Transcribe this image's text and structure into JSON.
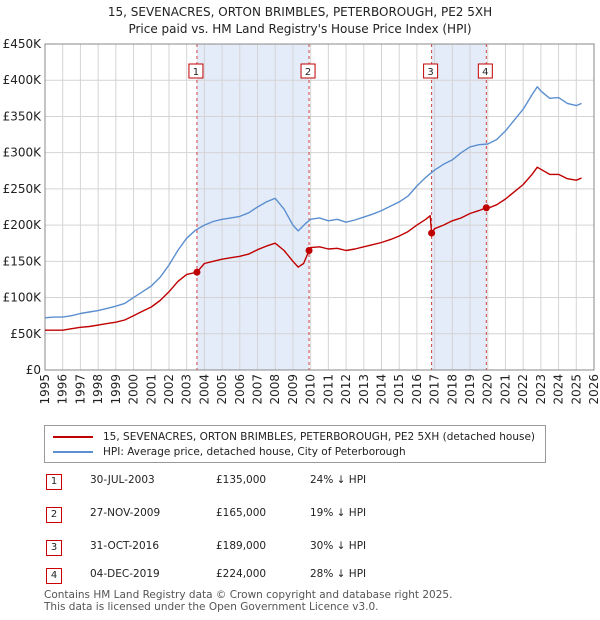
{
  "title_line1": "15, SEVENACRES, ORTON BRIMBLES, PETERBOROUGH, PE2 5XH",
  "title_line2": "Price paid vs. HM Land Registry's House Price Index (HPI)",
  "chart_data": {
    "type": "line",
    "title": "15, SEVENACRES, ORTON BRIMBLES, PETERBOROUGH, PE2 5XH — Price paid vs. HM Land Registry's House Price Index (HPI)",
    "xlabel": "",
    "ylabel": "",
    "xlim": [
      1995,
      2026
    ],
    "ylim": [
      0,
      450000
    ],
    "x_ticks": [
      1995,
      1996,
      1997,
      1998,
      1999,
      2000,
      2001,
      2002,
      2003,
      2004,
      2005,
      2006,
      2007,
      2008,
      2009,
      2010,
      2011,
      2012,
      2013,
      2014,
      2015,
      2016,
      2017,
      2018,
      2019,
      2020,
      2021,
      2022,
      2023,
      2024,
      2025,
      2026
    ],
    "y_ticks": [
      {
        "value": 0,
        "label": "£0"
      },
      {
        "value": 50000,
        "label": "£50K"
      },
      {
        "value": 100000,
        "label": "£100K"
      },
      {
        "value": 150000,
        "label": "£150K"
      },
      {
        "value": 200000,
        "label": "£200K"
      },
      {
        "value": 250000,
        "label": "£250K"
      },
      {
        "value": 300000,
        "label": "£300K"
      },
      {
        "value": 350000,
        "label": "£350K"
      },
      {
        "value": 400000,
        "label": "£400K"
      },
      {
        "value": 450000,
        "label": "£450K"
      }
    ],
    "shaded_periods": [
      [
        2003.58,
        2009.91
      ],
      [
        2016.83,
        2019.92
      ]
    ],
    "series": [
      {
        "name": "HPI: Average price, detached house, City of Peterborough",
        "color": "#5b8fd0",
        "x": [
          1995,
          1995.5,
          1996,
          1996.5,
          1997,
          1997.5,
          1998,
          1998.5,
          1999,
          1999.5,
          2000,
          2000.5,
          2001,
          2001.5,
          2002,
          2002.5,
          2003,
          2003.5,
          2004,
          2004.5,
          2005,
          2005.5,
          2006,
          2006.5,
          2007,
          2007.5,
          2008,
          2008.5,
          2009,
          2009.3,
          2009.7,
          2010,
          2010.5,
          2011,
          2011.5,
          2012,
          2012.5,
          2013,
          2013.5,
          2014,
          2014.5,
          2015,
          2015.5,
          2016,
          2016.5,
          2017,
          2017.5,
          2018,
          2018.5,
          2019,
          2019.5,
          2020,
          2020.5,
          2021,
          2021.5,
          2022,
          2022.5,
          2022.8,
          2023,
          2023.5,
          2024,
          2024.5,
          2025,
          2025.3
        ],
        "values": [
          72000,
          73000,
          73000,
          75000,
          78000,
          80000,
          82000,
          85000,
          88000,
          92000,
          100000,
          108000,
          116000,
          128000,
          145000,
          165000,
          182000,
          193000,
          200000,
          205000,
          208000,
          210000,
          212000,
          217000,
          225000,
          232000,
          237000,
          222000,
          200000,
          192000,
          202000,
          208000,
          210000,
          206000,
          208000,
          204000,
          207000,
          211000,
          215000,
          220000,
          226000,
          232000,
          240000,
          254000,
          266000,
          276000,
          284000,
          290000,
          300000,
          308000,
          311000,
          312000,
          318000,
          330000,
          345000,
          360000,
          380000,
          391000,
          385000,
          375000,
          376000,
          368000,
          365000,
          368000
        ]
      },
      {
        "name": "15, SEVENACRES, ORTON BRIMBLES, PETERBOROUGH, PE2 5XH (detached house)",
        "color": "#c00000",
        "x": [
          1995,
          1995.5,
          1996,
          1996.5,
          1997,
          1997.5,
          1998,
          1998.5,
          1999,
          1999.5,
          2000,
          2000.5,
          2001,
          2001.5,
          2002,
          2002.5,
          2003,
          2003.58,
          2004,
          2004.5,
          2005,
          2005.5,
          2006,
          2006.5,
          2007,
          2007.5,
          2008,
          2008.5,
          2009,
          2009.3,
          2009.6,
          2009.91,
          2010,
          2010.5,
          2011,
          2011.5,
          2012,
          2012.5,
          2013,
          2013.5,
          2014,
          2014.5,
          2015,
          2015.5,
          2016,
          2016.5,
          2016.75,
          2016.83,
          2017,
          2017.5,
          2018,
          2018.5,
          2019,
          2019.5,
          2019.92,
          2020,
          2020.5,
          2021,
          2021.5,
          2022,
          2022.5,
          2022.8,
          2023,
          2023.5,
          2024,
          2024.5,
          2025,
          2025.3
        ],
        "values": [
          55000,
          55000,
          55000,
          57000,
          59000,
          60000,
          62000,
          64000,
          66000,
          69000,
          75000,
          81000,
          87000,
          96000,
          108000,
          122000,
          132000,
          135000,
          147000,
          150000,
          153000,
          155000,
          157000,
          160000,
          166000,
          171000,
          175000,
          165000,
          150000,
          142000,
          147000,
          165000,
          169000,
          170000,
          167000,
          168000,
          165000,
          167000,
          170000,
          173000,
          176000,
          180000,
          185000,
          191000,
          200000,
          208000,
          213000,
          189000,
          195000,
          200000,
          206000,
          210000,
          216000,
          220000,
          224000,
          223000,
          228000,
          236000,
          246000,
          256000,
          270000,
          280000,
          277000,
          270000,
          270000,
          264000,
          262000,
          265000
        ]
      }
    ],
    "sales_markers": [
      {
        "label": "1",
        "x": 2003.58,
        "y": 135000
      },
      {
        "label": "2",
        "x": 2009.91,
        "y": 165000
      },
      {
        "label": "3",
        "x": 2016.83,
        "y": 189000
      },
      {
        "label": "4",
        "x": 2019.92,
        "y": 224000
      }
    ]
  },
  "legend": {
    "property_label": "15, SEVENACRES, ORTON BRIMBLES, PETERBOROUGH, PE2 5XH (detached house)",
    "hpi_label": "HPI: Average price, detached house, City of Peterborough",
    "property_color": "#c00000",
    "hpi_color": "#5b8fd0"
  },
  "sales": [
    {
      "num": "1",
      "date": "30-JUL-2003",
      "price": "£135,000",
      "hpi": "24% ↓ HPI"
    },
    {
      "num": "2",
      "date": "27-NOV-2009",
      "price": "£165,000",
      "hpi": "19% ↓ HPI"
    },
    {
      "num": "3",
      "date": "31-OCT-2016",
      "price": "£189,000",
      "hpi": "30% ↓ HPI"
    },
    {
      "num": "4",
      "date": "04-DEC-2019",
      "price": "£224,000",
      "hpi": "28% ↓ HPI"
    }
  ],
  "footer": {
    "line1": "Contains HM Land Registry data © Crown copyright and database right 2025.",
    "line2": "This data is licensed under the Open Government Licence v3.0."
  }
}
